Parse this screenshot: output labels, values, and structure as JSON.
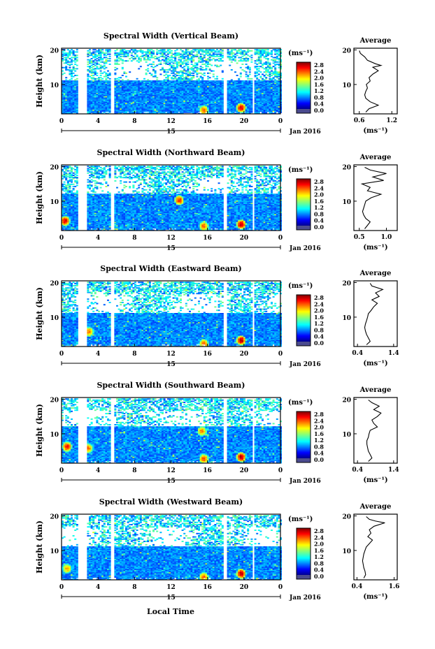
{
  "figure": {
    "xlabel_bottom": "Local Time",
    "date_label": "Jan 2016",
    "day_label": "15",
    "ylabel": "Height (km)",
    "colorbar_unit": "(ms⁻¹)",
    "avg_title": "Average",
    "avg_xlabel": "(ms⁻¹)"
  },
  "chart_data": [
    {
      "type": "heatmap",
      "title": "Spectral Width (Vertical Beam)",
      "x_ticks": [
        "0",
        "4",
        "8",
        "12",
        "16",
        "20",
        "0"
      ],
      "y_ticks": [
        "20",
        "10"
      ],
      "xlim": [
        0,
        24
      ],
      "ylim": [
        1.5,
        20.5
      ],
      "gaps": [
        [
          1.6,
          2.6
        ],
        [
          5.3,
          5.6
        ],
        [
          17.6,
          18.1
        ],
        [
          20.8,
          21.1
        ]
      ],
      "colorbar": {
        "ticks": [
          "2.8",
          "2.4",
          "2.0",
          "1.6",
          "1.2",
          "0.8",
          "0.4",
          "0.0"
        ],
        "range": [
          0,
          3.0
        ]
      },
      "hotspots": [
        [
          19.6,
          3.5,
          2.6
        ],
        [
          15.5,
          2.8,
          2.2
        ]
      ],
      "inset": {
        "title": "Average",
        "x_ticks": [
          "0.6",
          "1.2"
        ],
        "xlim": [
          0.5,
          1.3
        ],
        "y_ticks": [
          "20",
          "10"
        ],
        "ylim": [
          1.5,
          20.5
        ],
        "profile": [
          [
            2,
            0.72
          ],
          [
            3,
            0.78
          ],
          [
            4,
            0.95
          ],
          [
            5,
            0.8
          ],
          [
            6,
            0.72
          ],
          [
            7,
            0.7
          ],
          [
            8,
            0.72
          ],
          [
            9,
            0.75
          ],
          [
            10,
            0.73
          ],
          [
            11,
            0.8
          ],
          [
            12,
            0.78
          ],
          [
            13,
            0.85
          ],
          [
            14,
            0.95
          ],
          [
            15,
            0.85
          ],
          [
            15.5,
            1.0
          ],
          [
            16,
            0.9
          ],
          [
            17,
            0.75
          ],
          [
            18,
            0.7
          ],
          [
            19,
            0.62
          ],
          [
            19.8,
            0.6
          ]
        ]
      }
    },
    {
      "type": "heatmap",
      "title": "Spectral Width (Northward Beam)",
      "x_ticks": [
        "0",
        "4",
        "8",
        "12",
        "16",
        "20",
        "0"
      ],
      "y_ticks": [
        "20",
        "10"
      ],
      "xlim": [
        0,
        24
      ],
      "ylim": [
        1.5,
        20.5
      ],
      "gaps": [
        [
          1.6,
          2.6
        ],
        [
          5.3,
          5.6
        ],
        [
          17.6,
          18.1
        ],
        [
          20.8,
          21.1
        ]
      ],
      "colorbar": {
        "ticks": [
          "2.8",
          "2.4",
          "2.0",
          "1.6",
          "1.2",
          "0.8",
          "0.4",
          "0.0"
        ],
        "range": [
          0,
          3.0
        ]
      },
      "hotspots": [
        [
          19.6,
          3.5,
          2.7
        ],
        [
          15.5,
          3.0,
          2.2
        ],
        [
          12.8,
          10.5,
          2.4
        ],
        [
          0.3,
          4.5,
          2.6
        ]
      ],
      "inset": {
        "title": "Average",
        "x_ticks": [
          "0.5",
          "1.0"
        ],
        "xlim": [
          0.4,
          1.2
        ],
        "y_ticks": [
          "20",
          "10"
        ],
        "ylim": [
          1.5,
          20.5
        ],
        "profile": [
          [
            2,
            0.6
          ],
          [
            3,
            0.65
          ],
          [
            4,
            0.7
          ],
          [
            5,
            0.62
          ],
          [
            6,
            0.58
          ],
          [
            7,
            0.56
          ],
          [
            8,
            0.58
          ],
          [
            9,
            0.6
          ],
          [
            10,
            0.62
          ],
          [
            11,
            0.72
          ],
          [
            12,
            0.9
          ],
          [
            13,
            0.65
          ],
          [
            14,
            0.7
          ],
          [
            15,
            0.55
          ],
          [
            16,
            0.95
          ],
          [
            17,
            0.75
          ],
          [
            18,
            1.0
          ],
          [
            19,
            0.7
          ],
          [
            19.8,
            0.6
          ]
        ]
      }
    },
    {
      "type": "heatmap",
      "title": "Spectral Width (Eastward Beam)",
      "x_ticks": [
        "0",
        "4",
        "8",
        "12",
        "16",
        "20",
        "0"
      ],
      "y_ticks": [
        "20",
        "10"
      ],
      "xlim": [
        0,
        24
      ],
      "ylim": [
        1.5,
        20.5
      ],
      "gaps": [
        [
          1.6,
          2.6
        ],
        [
          5.3,
          5.6
        ],
        [
          17.6,
          18.1
        ],
        [
          20.8,
          21.1
        ]
      ],
      "colorbar": {
        "ticks": [
          "2.8",
          "2.4",
          "2.0",
          "1.6",
          "1.2",
          "0.8",
          "0.4",
          "0.0"
        ],
        "range": [
          0,
          3.0
        ]
      },
      "hotspots": [
        [
          19.6,
          3.5,
          2.7
        ],
        [
          15.5,
          2.5,
          2.2
        ],
        [
          2.9,
          6.0,
          2.1
        ]
      ],
      "inset": {
        "title": "Average",
        "x_ticks": [
          "0.4",
          "1.4"
        ],
        "xlim": [
          0.3,
          1.5
        ],
        "y_ticks": [
          "20",
          "10"
        ],
        "ylim": [
          1.5,
          20.5
        ],
        "profile": [
          [
            2,
            0.65
          ],
          [
            3,
            0.75
          ],
          [
            4,
            0.7
          ],
          [
            5,
            0.65
          ],
          [
            6,
            0.62
          ],
          [
            7,
            0.6
          ],
          [
            8,
            0.62
          ],
          [
            9,
            0.65
          ],
          [
            10,
            0.68
          ],
          [
            11,
            0.7
          ],
          [
            12,
            0.78
          ],
          [
            13,
            0.85
          ],
          [
            14,
            0.95
          ],
          [
            15,
            0.8
          ],
          [
            16,
            1.0
          ],
          [
            17,
            0.9
          ],
          [
            18,
            1.1
          ],
          [
            19,
            0.8
          ],
          [
            19.8,
            0.75
          ]
        ]
      }
    },
    {
      "type": "heatmap",
      "title": "Spectral Width (Southward Beam)",
      "x_ticks": [
        "0",
        "4",
        "8",
        "12",
        "16",
        "20",
        "0"
      ],
      "y_ticks": [
        "20",
        "10"
      ],
      "xlim": [
        0,
        24
      ],
      "ylim": [
        1.5,
        20.5
      ],
      "gaps": [
        [
          1.6,
          2.6
        ],
        [
          5.3,
          5.6
        ],
        [
          17.6,
          18.1
        ],
        [
          20.8,
          21.1
        ]
      ],
      "colorbar": {
        "ticks": [
          "2.8",
          "2.4",
          "2.0",
          "1.6",
          "1.2",
          "0.8",
          "0.4",
          "0.0"
        ],
        "range": [
          0,
          3.0
        ]
      },
      "hotspots": [
        [
          19.6,
          3.5,
          2.7
        ],
        [
          15.5,
          3.0,
          2.3
        ],
        [
          0.5,
          6.5,
          2.5
        ],
        [
          2.8,
          6.0,
          2.2
        ],
        [
          15.3,
          11.0,
          2.1
        ]
      ],
      "inset": {
        "title": "Average",
        "x_ticks": [
          "0.4",
          "1.4"
        ],
        "xlim": [
          0.3,
          1.5
        ],
        "y_ticks": [
          "20",
          "10"
        ],
        "ylim": [
          1.5,
          20.5
        ],
        "profile": [
          [
            2,
            0.7
          ],
          [
            3,
            0.8
          ],
          [
            4,
            0.75
          ],
          [
            5,
            0.7
          ],
          [
            6,
            0.68
          ],
          [
            7,
            0.66
          ],
          [
            8,
            0.66
          ],
          [
            9,
            0.7
          ],
          [
            10,
            0.72
          ],
          [
            11,
            0.75
          ],
          [
            12,
            0.95
          ],
          [
            13,
            0.85
          ],
          [
            14,
            0.8
          ],
          [
            15,
            0.95
          ],
          [
            16,
            1.05
          ],
          [
            17,
            0.85
          ],
          [
            18,
            1.0
          ],
          [
            19,
            0.8
          ],
          [
            19.8,
            0.7
          ]
        ]
      }
    },
    {
      "type": "heatmap",
      "title": "Spectral Width (Westward Beam)",
      "x_ticks": [
        "0",
        "4",
        "8",
        "12",
        "16",
        "20",
        "0"
      ],
      "y_ticks": [
        "20",
        "10"
      ],
      "xlim": [
        0,
        24
      ],
      "ylim": [
        1.5,
        20.5
      ],
      "gaps": [
        [
          1.6,
          2.6
        ],
        [
          5.3,
          5.6
        ],
        [
          17.6,
          18.1
        ],
        [
          20.8,
          21.1
        ]
      ],
      "colorbar": {
        "ticks": [
          "2.8",
          "2.4",
          "2.0",
          "1.6",
          "1.2",
          "0.8",
          "0.4",
          "0.0"
        ],
        "range": [
          0,
          3.0
        ]
      },
      "hotspots": [
        [
          19.6,
          3.5,
          2.7
        ],
        [
          15.5,
          2.5,
          2.2
        ],
        [
          0.5,
          5.0,
          2.0
        ]
      ],
      "inset": {
        "title": "Average",
        "x_ticks": [
          "0.4",
          "1.6"
        ],
        "xlim": [
          0.3,
          1.7
        ],
        "y_ticks": [
          "20",
          "10"
        ],
        "ylim": [
          1.5,
          20.5
        ],
        "profile": [
          [
            2,
            0.62
          ],
          [
            3,
            0.68
          ],
          [
            4,
            0.66
          ],
          [
            5,
            0.62
          ],
          [
            6,
            0.6
          ],
          [
            7,
            0.58
          ],
          [
            8,
            0.6
          ],
          [
            9,
            0.62
          ],
          [
            10,
            0.66
          ],
          [
            11,
            0.7
          ],
          [
            12,
            0.8
          ],
          [
            13,
            0.9
          ],
          [
            14,
            0.75
          ],
          [
            15,
            0.85
          ],
          [
            16,
            0.8
          ],
          [
            17,
            0.95
          ],
          [
            18,
            1.3
          ],
          [
            18.5,
            1.0
          ],
          [
            19,
            0.8
          ],
          [
            19.8,
            0.7
          ]
        ]
      }
    }
  ]
}
